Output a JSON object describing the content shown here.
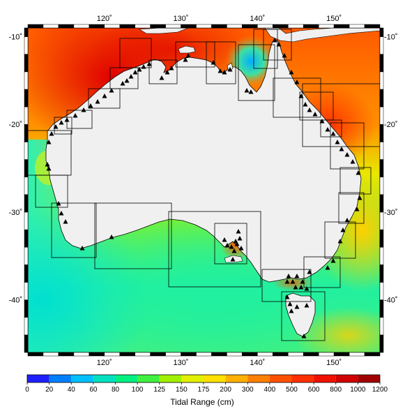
{
  "map": {
    "lon_range": [
      110,
      156
    ],
    "lat_range": [
      -46,
      -9
    ],
    "x_ticks": [
      {
        "value": 120,
        "label": "120˚"
      },
      {
        "value": 130,
        "label": "130˚"
      },
      {
        "value": 140,
        "label": "140˚"
      },
      {
        "value": 150,
        "label": "150˚"
      }
    ],
    "y_ticks": [
      {
        "value": -10,
        "label": "-10˚"
      },
      {
        "value": -20,
        "label": "-20˚"
      },
      {
        "value": -30,
        "label": "-30˚"
      },
      {
        "value": -40,
        "label": "-40˚"
      }
    ],
    "land_color": "#f0f0f0"
  },
  "colorbar": {
    "title": "Tidal Range (cm)",
    "labels": [
      "0",
      "20",
      "40",
      "60",
      "80",
      "100",
      "125",
      "150",
      "175",
      "200",
      "300",
      "400",
      "500",
      "600",
      "800",
      "1000",
      "1200"
    ],
    "colors": [
      "#2020ff",
      "#0080ff",
      "#00c0ff",
      "#00e0c0",
      "#00f080",
      "#40f040",
      "#a0f000",
      "#e0f000",
      "#ffe000",
      "#ffb000",
      "#ff8000",
      "#ff5000",
      "#ff3000",
      "#f01000",
      "#d00000",
      "#a00000"
    ]
  }
}
